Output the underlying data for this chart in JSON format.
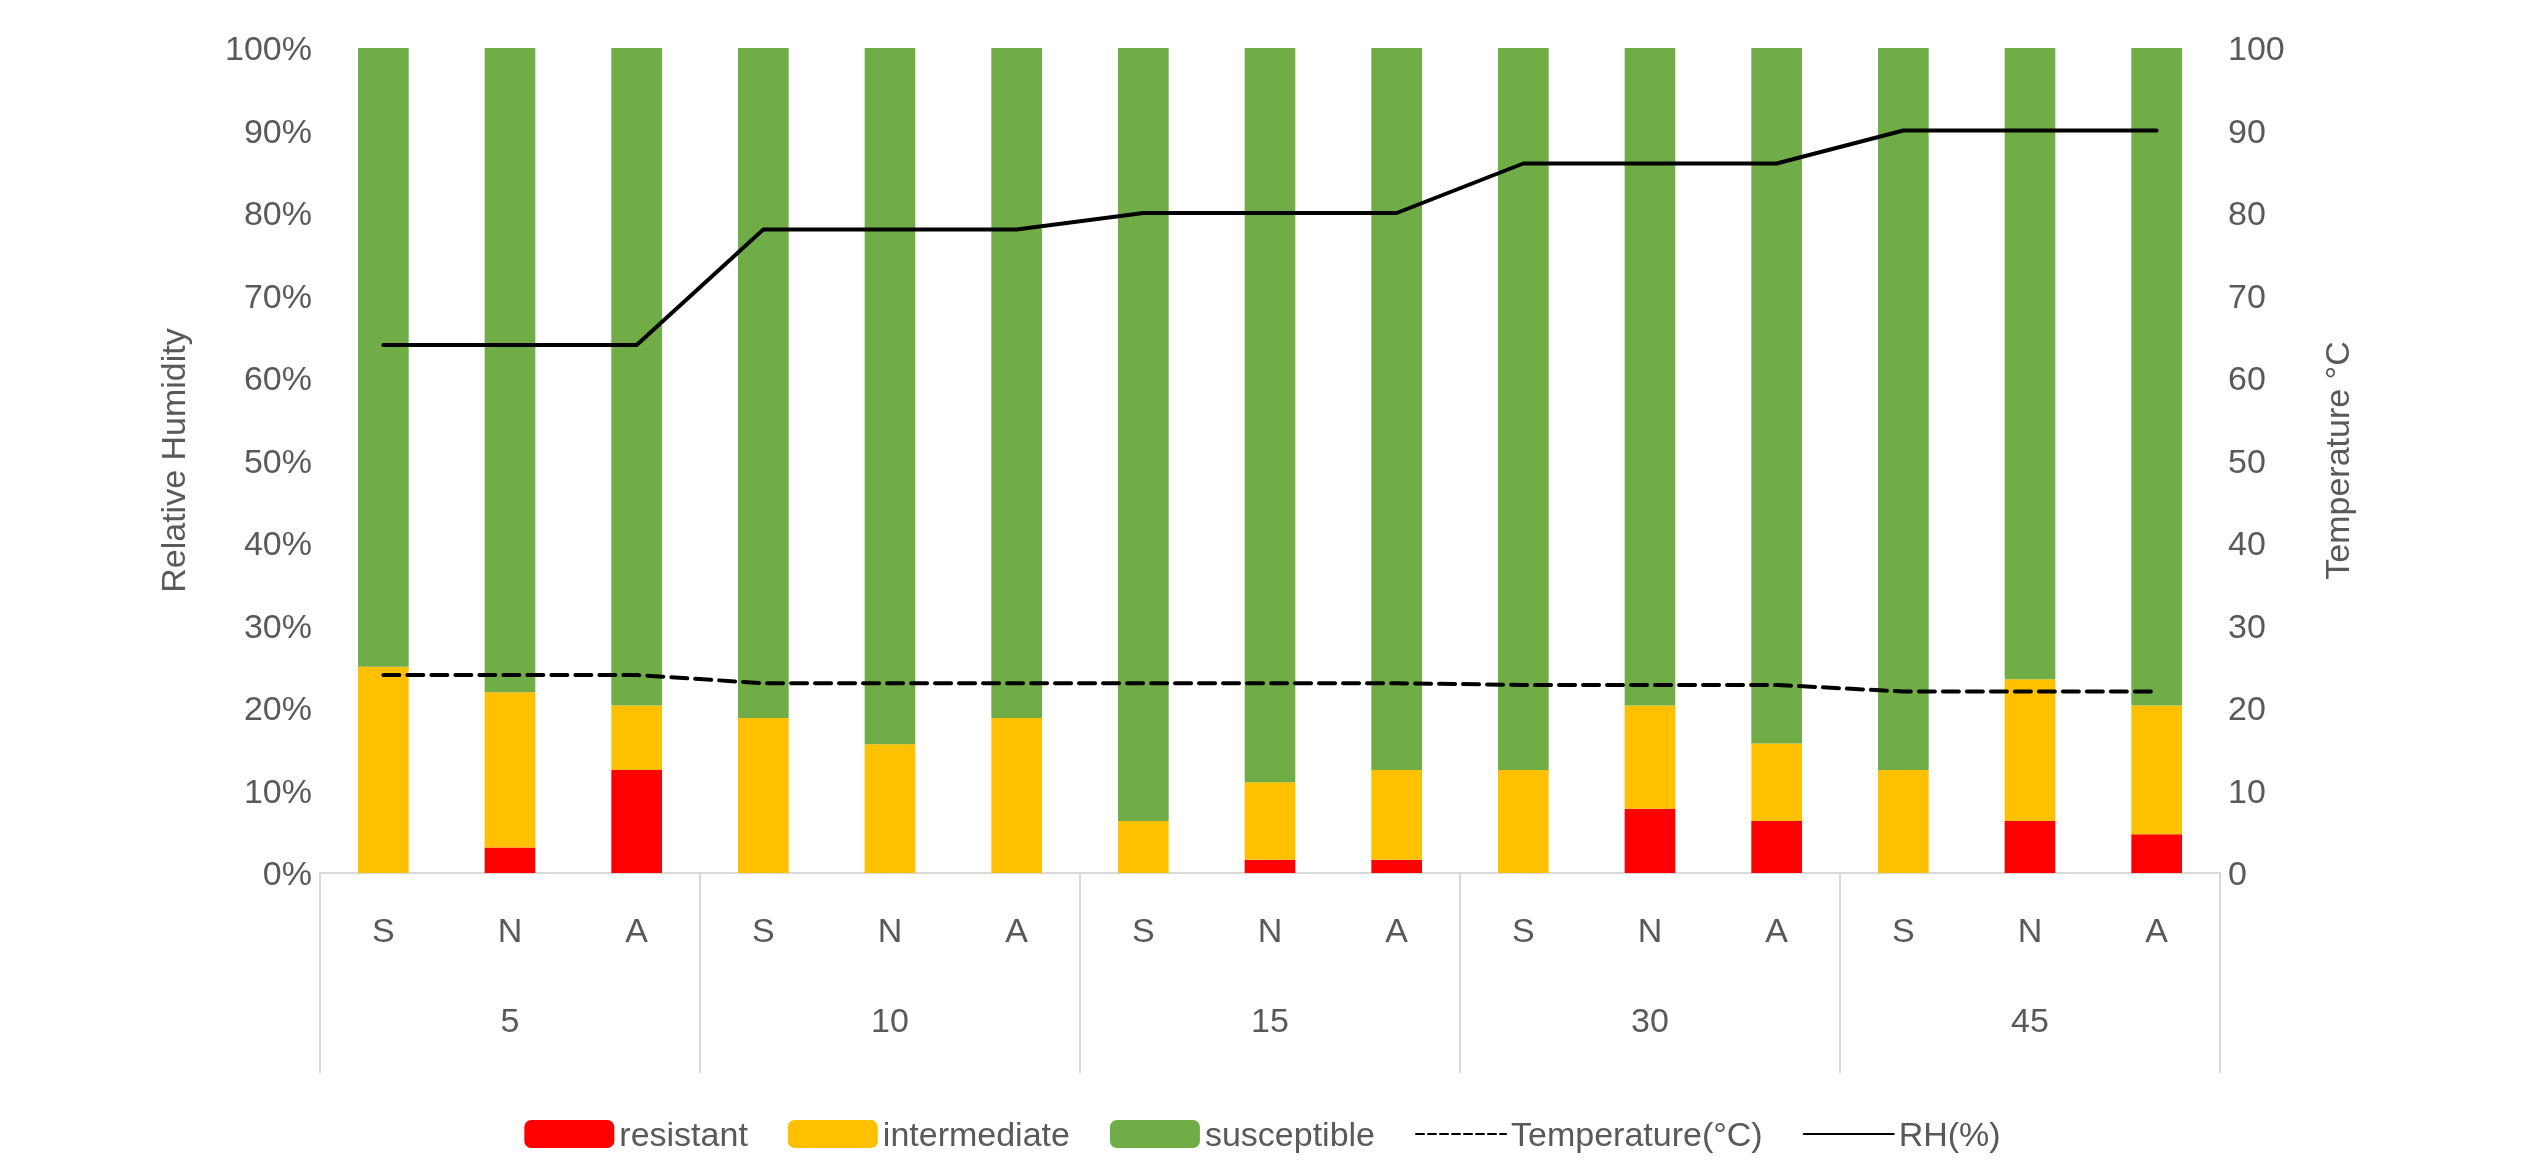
{
  "chart_data": {
    "type": "bar",
    "stacked": true,
    "ylabel": "Relative Humidity",
    "y2label": "Temperature °C",
    "categories": [
      "S",
      "N",
      "A",
      "S",
      "N",
      "A",
      "S",
      "N",
      "A",
      "S",
      "N",
      "A",
      "S",
      "N",
      "A"
    ],
    "annotations": [
      "5",
      "10",
      "15",
      "30",
      "45"
    ],
    "series": [
      {
        "name": "resistant",
        "color": "#ff0000",
        "values": [
          0,
          3.1,
          12.5,
          0,
          0,
          0,
          0,
          1.6,
          1.6,
          0,
          7.8,
          6.3,
          0,
          6.3,
          4.7
        ]
      },
      {
        "name": "intermediate",
        "color": "#ffc000",
        "values": [
          25,
          18.8,
          7.8,
          18.8,
          15.6,
          18.8,
          6.3,
          9.4,
          10.9,
          12.5,
          12.5,
          9.4,
          12.5,
          17.2,
          15.6
        ]
      },
      {
        "name": "susceptible",
        "color": "#70ad47",
        "values": [
          75,
          78.1,
          79.7,
          81.2,
          84.4,
          81.2,
          93.7,
          89,
          87.5,
          87.5,
          79.7,
          84.3,
          87.5,
          76.5,
          79.7
        ]
      },
      {
        "name": "Temperature(°C)",
        "type": "line",
        "axis": "y2",
        "color": "#000000",
        "line_style": "dashed",
        "values": [
          24,
          24,
          24,
          23,
          23,
          23,
          23,
          23,
          23,
          22.8,
          22.8,
          22.8,
          22,
          22,
          22
        ]
      },
      {
        "name": "RH(%)",
        "type": "line",
        "color": "#000000",
        "line_style": "solid",
        "values": [
          64,
          64,
          64,
          78,
          78,
          78,
          80,
          80,
          80,
          86,
          86,
          86,
          90,
          90,
          90
        ]
      }
    ],
    "ylim": [
      0,
      100
    ],
    "yticks": [
      {
        "value": 0,
        "label": "0%"
      },
      {
        "value": 10,
        "label": "10%"
      },
      {
        "value": 20,
        "label": "20%"
      },
      {
        "value": 30,
        "label": "30%"
      },
      {
        "value": 40,
        "label": "40%"
      },
      {
        "value": 50,
        "label": "50%"
      },
      {
        "value": 60,
        "label": "60%"
      },
      {
        "value": 70,
        "label": "70%"
      },
      {
        "value": 80,
        "label": "80%"
      },
      {
        "value": 90,
        "label": "90%"
      },
      {
        "value": 100,
        "label": "100%"
      }
    ],
    "y2lim": [
      0,
      100
    ],
    "y2ticks": [
      0,
      10,
      20,
      30,
      40,
      50,
      60,
      70,
      80,
      90,
      100
    ],
    "grid": false,
    "legend": "bottom",
    "marker": "none"
  }
}
